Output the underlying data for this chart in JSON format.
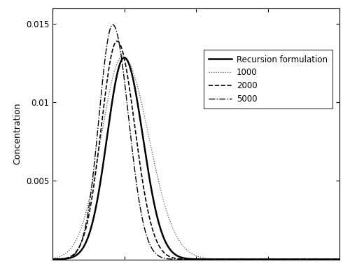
{
  "title": "",
  "ylabel": "Concentration",
  "xlabel": "",
  "ylim": [
    0.0,
    0.016
  ],
  "xlim": [
    0,
    1
  ],
  "yticks": [
    0.005,
    0.01,
    0.015
  ],
  "line_styles": [
    {
      "color": "#000000",
      "lw": 1.8,
      "ls": "-",
      "label": "Recursion formulation"
    },
    {
      "color": "#555555",
      "lw": 0.9,
      "ls": ":",
      "label": "1000"
    },
    {
      "color": "#000000",
      "lw": 1.2,
      "ls": "--",
      "label": "2000"
    },
    {
      "color": "#000000",
      "lw": 1.0,
      "ls": "-.",
      "label": "5000"
    }
  ],
  "curves": [
    {
      "peak_x": 0.25,
      "peak_y": 0.01285,
      "sl": 0.06,
      "sr": 0.065
    },
    {
      "peak_x": 0.245,
      "peak_y": 0.01295,
      "sl": 0.075,
      "sr": 0.09
    },
    {
      "peak_x": 0.225,
      "peak_y": 0.0139,
      "sl": 0.055,
      "sr": 0.062
    },
    {
      "peak_x": 0.21,
      "peak_y": 0.01495,
      "sl": 0.048,
      "sr": 0.055
    }
  ],
  "background_color": "#ffffff",
  "legend_loc": "center right",
  "figsize": [
    5.0,
    3.9
  ],
  "dpi": 100
}
